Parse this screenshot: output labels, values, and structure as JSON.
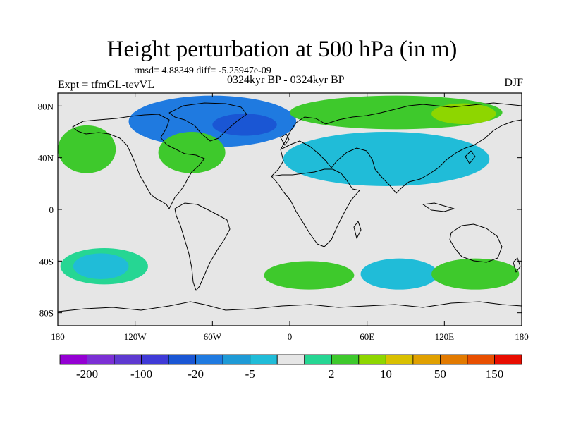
{
  "title": "Height perturbation at 500 hPa (in m)",
  "rmsd_line": "rmsd= 4.88349  diff= -5.25947e-09",
  "experiment": "Expt = tfmGL-tevVL",
  "time_label": "0324kyr BP - 0324kyr BP",
  "season": "DJF",
  "map": {
    "type": "heatmap",
    "projection": "cylindrical-equidistant",
    "lon_range": [
      -180,
      180
    ],
    "lat_range": [
      -90,
      90
    ],
    "x_ticks": [
      {
        "value": -180,
        "label": "180"
      },
      {
        "value": -120,
        "label": "120W"
      },
      {
        "value": -60,
        "label": "60W"
      },
      {
        "value": 0,
        "label": "0"
      },
      {
        "value": 60,
        "label": "60E"
      },
      {
        "value": 120,
        "label": "120E"
      },
      {
        "value": 180,
        "label": "180"
      }
    ],
    "y_ticks": [
      {
        "value": 80,
        "label": "80N"
      },
      {
        "value": 40,
        "label": "40N"
      },
      {
        "value": 0,
        "label": "0"
      },
      {
        "value": -40,
        "label": "40S"
      },
      {
        "value": -80,
        "label": "80S"
      }
    ],
    "background_color": "#e6e6e6",
    "coastline_color": "#000000",
    "anomaly_regions": [
      {
        "name": "arctic-atlantic-low",
        "lon": [
          -125,
          5
        ],
        "lat": [
          48,
          88
        ],
        "level": -20
      },
      {
        "name": "greenland-low-core",
        "lon": [
          -60,
          -10
        ],
        "lat": [
          57,
          74
        ],
        "level": -50
      },
      {
        "name": "north-pacific-high",
        "lon": [
          -180,
          -135
        ],
        "lat": [
          28,
          65
        ],
        "level": 5
      },
      {
        "name": "north-america-high",
        "lon": [
          -102,
          -50
        ],
        "lat": [
          28,
          60
        ],
        "level": 5
      },
      {
        "name": "north-eurasia-high",
        "lon": [
          0,
          165
        ],
        "lat": [
          62,
          88
        ],
        "level": 5
      },
      {
        "name": "siberia-high-core",
        "lon": [
          110,
          160
        ],
        "lat": [
          66,
          82
        ],
        "level": 10
      },
      {
        "name": "central-asia-low",
        "lon": [
          -5,
          155
        ],
        "lat": [
          18,
          60
        ],
        "level": -5
      },
      {
        "name": "south-pacific-ring",
        "lon": [
          -178,
          -110
        ],
        "lat": [
          -58,
          -30
        ],
        "level": 2
      },
      {
        "name": "south-pacific-low",
        "lon": [
          -168,
          -125
        ],
        "lat": [
          -54,
          -34
        ],
        "level": -5
      },
      {
        "name": "south-atlantic-high",
        "lon": [
          -20,
          50
        ],
        "lat": [
          -62,
          -40
        ],
        "level": 5
      },
      {
        "name": "indian-ocean-low",
        "lon": [
          55,
          115
        ],
        "lat": [
          -62,
          -38
        ],
        "level": -5
      },
      {
        "name": "southwest-pacific-high",
        "lon": [
          110,
          178
        ],
        "lat": [
          -62,
          -38
        ],
        "level": 5
      }
    ]
  },
  "colorbar": {
    "colors": [
      "#9400d3",
      "#7b2fd4",
      "#5e39d0",
      "#3f3ad7",
      "#1a56d4",
      "#1f7ae0",
      "#1e9ad6",
      "#20bcd8",
      "#e6e6e6",
      "#26d693",
      "#3ec92c",
      "#8ed600",
      "#d9c000",
      "#e0a000",
      "#e27a00",
      "#e84f00",
      "#e80d00"
    ],
    "labels": [
      "-200",
      "-100",
      "-20",
      "-5",
      "2",
      "10",
      "50",
      "150"
    ]
  }
}
